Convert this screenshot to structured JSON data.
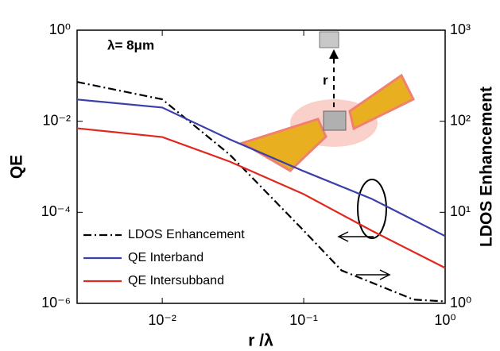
{
  "chart_data": {
    "type": "line",
    "xlabel": "r /λ",
    "ylabel": "QE",
    "y2label": "LDOS Enhancement",
    "annotations": [
      "λ= 8μm",
      "r"
    ],
    "xlog": true,
    "ylog": true,
    "y2log": true,
    "xlim": [
      0.0025,
      1
    ],
    "ylim": [
      1e-06,
      1
    ],
    "y2lim": [
      1,
      1000
    ],
    "xticks": [
      {
        "value": 0.01,
        "label": "10⁻²"
      },
      {
        "value": 0.1,
        "label": "10⁻¹"
      },
      {
        "value": 1,
        "label": "10⁰"
      }
    ],
    "yticks": [
      {
        "value": 1e-06,
        "label": "10⁻⁶"
      },
      {
        "value": 0.0001,
        "label": "10⁻⁴"
      },
      {
        "value": 0.01,
        "label": "10⁻²"
      },
      {
        "value": 1,
        "label": "10⁰"
      }
    ],
    "y2ticks": [
      {
        "value": 1,
        "label": "10⁰"
      },
      {
        "value": 10,
        "label": "10¹"
      },
      {
        "value": 100,
        "label": "10²"
      },
      {
        "value": 1000,
        "label": "10³"
      }
    ],
    "legend": "lower left",
    "series": [
      {
        "name": "LDOS Enhancement",
        "color": "#000000",
        "linestyle": "dashdot",
        "axis": "y2",
        "x": [
          0.0025,
          0.01,
          0.03,
          0.1,
          0.185,
          0.3,
          0.6,
          1
        ],
        "values": [
          270,
          174,
          43,
          6.3,
          2.3,
          1.7,
          1.1,
          1.05
        ]
      },
      {
        "name": "QE Interband",
        "color": "#3b3fa8",
        "linestyle": "solid",
        "x": [
          0.0025,
          0.01,
          0.03,
          0.1,
          0.3,
          1
        ],
        "values": [
          0.03,
          0.02,
          0.004,
          0.0008,
          0.0002,
          3e-05
        ]
      },
      {
        "name": "QE Intersubband",
        "color": "#e0281e",
        "linestyle": "solid",
        "x": [
          0.0025,
          0.01,
          0.03,
          0.1,
          0.3,
          1
        ],
        "values": [
          0.007,
          0.0045,
          0.0013,
          0.00025,
          4e-05,
          6e-06
        ]
      }
    ]
  }
}
